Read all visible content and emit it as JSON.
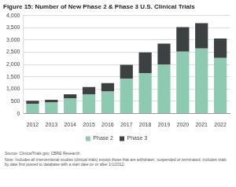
{
  "chart_data": {
    "type": "bar",
    "title": "Figure 15: Number of New Phase 2 & Phase 3 U.S. Clinical Trials",
    "annotations": [
      "Source: ClinicalTrials.gov, CBRE Research.",
      "Note: Includes all interventional studies (clinical trials) except those that are withdrawn, suspended or terminated. Includes trials by date first posted to database with a start date on or after 1/1/2012."
    ],
    "categories": [
      "2012",
      "2013",
      "2014",
      "2015",
      "2016",
      "2017",
      "2018",
      "2019",
      "2020",
      "2021",
      "2022"
    ],
    "series": [
      {
        "name": "Phase 2",
        "color": "#8ccbb1",
        "values": [
          400,
          450,
          620,
          780,
          900,
          1420,
          1650,
          2000,
          2520,
          2650,
          2270
        ]
      },
      {
        "name": "Phase 3",
        "color": "#3c4141",
        "values": [
          120,
          110,
          170,
          300,
          340,
          570,
          840,
          850,
          1000,
          1030,
          790
        ]
      }
    ],
    "stacked": true,
    "ylim": [
      0,
      4000
    ],
    "yticks": [
      0,
      500,
      {
        "value": 1000,
        "label": "1,000"
      },
      {
        "value": 1500,
        "label": "1,500"
      },
      {
        "value": 2000,
        "label": "2,000"
      },
      {
        "value": 2500,
        "label": "2,500"
      },
      {
        "value": 3000,
        "label": "3,000"
      },
      {
        "value": 3500,
        "label": "3,500"
      },
      {
        "value": 4000,
        "label": "4,000"
      }
    ],
    "grid": true,
    "legend": "bottom"
  }
}
